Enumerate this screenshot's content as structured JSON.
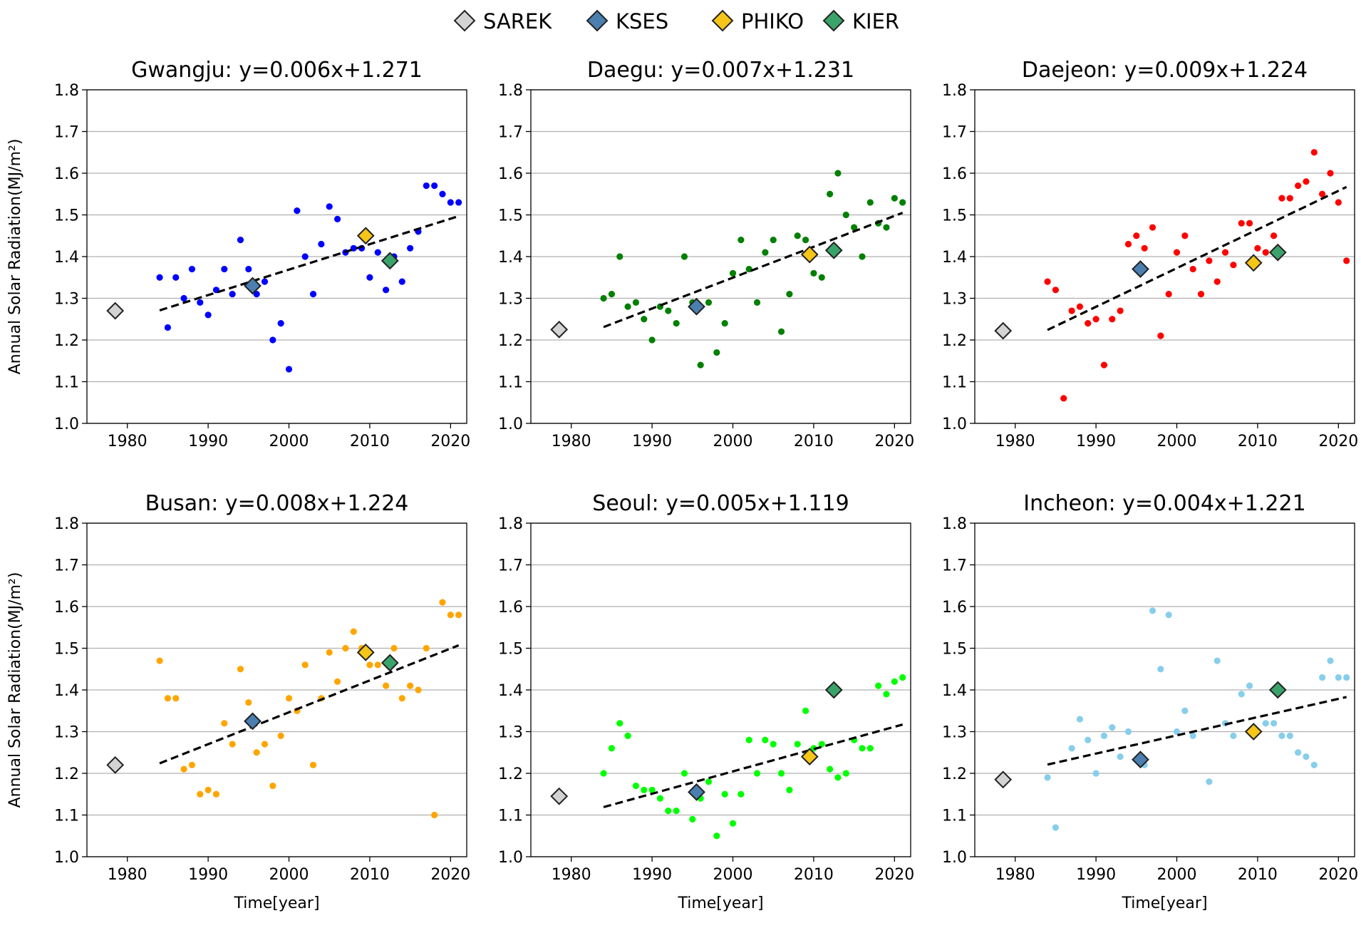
{
  "legend": [
    {
      "label": "SAREK",
      "color": "#d3d3d3"
    },
    {
      "label": "KSES",
      "color": "#4a7fb0"
    },
    {
      "label": "PHIKO",
      "color": "#f5c518"
    },
    {
      "label": "KIER",
      "color": "#3aa36a"
    }
  ],
  "chart_data": [
    {
      "type": "scatter",
      "title": "Gwangju: y=0.006x+1.271",
      "xlabel": "",
      "ylabel": "Annual Solar Radiation(MJ/m²)",
      "xlim": [
        1975,
        2022
      ],
      "ylim": [
        1.0,
        1.8
      ],
      "xticks": [
        1980,
        1990,
        2000,
        2010,
        2020
      ],
      "yticks": [
        1.0,
        1.1,
        1.2,
        1.3,
        1.4,
        1.5,
        1.6,
        1.7,
        1.8
      ],
      "grid": "y",
      "color": "#0000ff",
      "trend": {
        "x": [
          1984,
          2021
        ],
        "y": [
          1.271,
          1.497
        ]
      },
      "points": [
        [
          1984,
          1.35
        ],
        [
          1985,
          1.23
        ],
        [
          1986,
          1.35
        ],
        [
          1987,
          1.3
        ],
        [
          1988,
          1.37
        ],
        [
          1989,
          1.29
        ],
        [
          1990,
          1.26
        ],
        [
          1991,
          1.32
        ],
        [
          1992,
          1.37
        ],
        [
          1993,
          1.31
        ],
        [
          1994,
          1.44
        ],
        [
          1995,
          1.37
        ],
        [
          1996,
          1.31
        ],
        [
          1997,
          1.34
        ],
        [
          1998,
          1.2
        ],
        [
          1999,
          1.24
        ],
        [
          2000,
          1.13
        ],
        [
          2001,
          1.51
        ],
        [
          2002,
          1.4
        ],
        [
          2003,
          1.31
        ],
        [
          2004,
          1.43
        ],
        [
          2005,
          1.52
        ],
        [
          2006,
          1.49
        ],
        [
          2007,
          1.41
        ],
        [
          2008,
          1.42
        ],
        [
          2009,
          1.42
        ],
        [
          2010,
          1.35
        ],
        [
          2011,
          1.41
        ],
        [
          2012,
          1.32
        ],
        [
          2013,
          1.4
        ],
        [
          2014,
          1.34
        ],
        [
          2015,
          1.42
        ],
        [
          2016,
          1.46
        ],
        [
          2017,
          1.57
        ],
        [
          2018,
          1.57
        ],
        [
          2019,
          1.55
        ],
        [
          2020,
          1.53
        ],
        [
          2021,
          1.53
        ]
      ],
      "markers": [
        {
          "label": "SAREK",
          "x": 1978.5,
          "y": 1.27
        },
        {
          "label": "KSES",
          "x": 1995.5,
          "y": 1.33
        },
        {
          "label": "PHIKO",
          "x": 2009.5,
          "y": 1.45
        },
        {
          "label": "KIER",
          "x": 2012.5,
          "y": 1.39
        }
      ]
    },
    {
      "type": "scatter",
      "title": "Daegu: y=0.007x+1.231",
      "xlabel": "",
      "ylabel": "",
      "xlim": [
        1975,
        2022
      ],
      "ylim": [
        1.0,
        1.8
      ],
      "xticks": [
        1980,
        1990,
        2000,
        2010,
        2020
      ],
      "yticks": [
        1.0,
        1.1,
        1.2,
        1.3,
        1.4,
        1.5,
        1.6,
        1.7,
        1.8
      ],
      "grid": "y",
      "color": "#008000",
      "trend": {
        "x": [
          1984,
          2021
        ],
        "y": [
          1.231,
          1.505
        ]
      },
      "points": [
        [
          1984,
          1.3
        ],
        [
          1985,
          1.31
        ],
        [
          1986,
          1.4
        ],
        [
          1987,
          1.28
        ],
        [
          1988,
          1.29
        ],
        [
          1989,
          1.25
        ],
        [
          1990,
          1.2
        ],
        [
          1991,
          1.28
        ],
        [
          1992,
          1.27
        ],
        [
          1993,
          1.24
        ],
        [
          1994,
          1.4
        ],
        [
          1995,
          1.29
        ],
        [
          1996,
          1.14
        ],
        [
          1997,
          1.29
        ],
        [
          1998,
          1.17
        ],
        [
          1999,
          1.24
        ],
        [
          2000,
          1.36
        ],
        [
          2001,
          1.44
        ],
        [
          2002,
          1.37
        ],
        [
          2003,
          1.29
        ],
        [
          2004,
          1.41
        ],
        [
          2005,
          1.44
        ],
        [
          2006,
          1.22
        ],
        [
          2007,
          1.31
        ],
        [
          2008,
          1.45
        ],
        [
          2009,
          1.44
        ],
        [
          2010,
          1.36
        ],
        [
          2011,
          1.35
        ],
        [
          2012,
          1.55
        ],
        [
          2013,
          1.6
        ],
        [
          2014,
          1.5
        ],
        [
          2015,
          1.47
        ],
        [
          2016,
          1.4
        ],
        [
          2017,
          1.53
        ],
        [
          2018,
          1.48
        ],
        [
          2019,
          1.47
        ],
        [
          2020,
          1.54
        ],
        [
          2021,
          1.53
        ]
      ],
      "markers": [
        {
          "label": "SAREK",
          "x": 1978.5,
          "y": 1.225
        },
        {
          "label": "KSES",
          "x": 1995.5,
          "y": 1.28
        },
        {
          "label": "PHIKO",
          "x": 2009.5,
          "y": 1.405
        },
        {
          "label": "KIER",
          "x": 2012.5,
          "y": 1.415
        }
      ]
    },
    {
      "type": "scatter",
      "title": "Daejeon: y=0.009x+1.224",
      "xlabel": "",
      "ylabel": "",
      "xlim": [
        1975,
        2022
      ],
      "ylim": [
        1.0,
        1.8
      ],
      "xticks": [
        1980,
        1990,
        2000,
        2010,
        2020
      ],
      "yticks": [
        1.0,
        1.1,
        1.2,
        1.3,
        1.4,
        1.5,
        1.6,
        1.7,
        1.8
      ],
      "grid": "y",
      "color": "#ff0000",
      "trend": {
        "x": [
          1984,
          2021
        ],
        "y": [
          1.224,
          1.567
        ]
      },
      "points": [
        [
          1984,
          1.34
        ],
        [
          1985,
          1.32
        ],
        [
          1986,
          1.06
        ],
        [
          1987,
          1.27
        ],
        [
          1988,
          1.28
        ],
        [
          1989,
          1.24
        ],
        [
          1990,
          1.25
        ],
        [
          1991,
          1.14
        ],
        [
          1992,
          1.25
        ],
        [
          1993,
          1.27
        ],
        [
          1994,
          1.43
        ],
        [
          1995,
          1.45
        ],
        [
          1996,
          1.42
        ],
        [
          1997,
          1.47
        ],
        [
          1998,
          1.21
        ],
        [
          1999,
          1.31
        ],
        [
          2000,
          1.41
        ],
        [
          2001,
          1.45
        ],
        [
          2002,
          1.37
        ],
        [
          2003,
          1.31
        ],
        [
          2004,
          1.39
        ],
        [
          2005,
          1.34
        ],
        [
          2006,
          1.41
        ],
        [
          2007,
          1.38
        ],
        [
          2008,
          1.48
        ],
        [
          2009,
          1.48
        ],
        [
          2010,
          1.42
        ],
        [
          2011,
          1.41
        ],
        [
          2012,
          1.45
        ],
        [
          2013,
          1.54
        ],
        [
          2014,
          1.54
        ],
        [
          2015,
          1.57
        ],
        [
          2016,
          1.58
        ],
        [
          2017,
          1.65
        ],
        [
          2018,
          1.55
        ],
        [
          2019,
          1.6
        ],
        [
          2020,
          1.53
        ],
        [
          2021,
          1.39
        ]
      ],
      "markers": [
        {
          "label": "SAREK",
          "x": 1978.5,
          "y": 1.222
        },
        {
          "label": "KSES",
          "x": 1995.5,
          "y": 1.37
        },
        {
          "label": "PHIKO",
          "x": 2009.5,
          "y": 1.385
        },
        {
          "label": "KIER",
          "x": 2012.5,
          "y": 1.41
        }
      ]
    },
    {
      "type": "scatter",
      "title": "Busan: y=0.008x+1.224",
      "xlabel": "Time[year]",
      "ylabel": "Annual Solar Radiation(MJ/m²)",
      "xlim": [
        1975,
        2022
      ],
      "ylim": [
        1.0,
        1.8
      ],
      "xticks": [
        1980,
        1990,
        2000,
        2010,
        2020
      ],
      "yticks": [
        1.0,
        1.1,
        1.2,
        1.3,
        1.4,
        1.5,
        1.6,
        1.7,
        1.8
      ],
      "grid": "y",
      "color": "#ffa500",
      "trend": {
        "x": [
          1984,
          2021
        ],
        "y": [
          1.224,
          1.507
        ]
      },
      "points": [
        [
          1984,
          1.47
        ],
        [
          1985,
          1.38
        ],
        [
          1986,
          1.38
        ],
        [
          1987,
          1.21
        ],
        [
          1988,
          1.22
        ],
        [
          1989,
          1.15
        ],
        [
          1990,
          1.16
        ],
        [
          1991,
          1.15
        ],
        [
          1992,
          1.32
        ],
        [
          1993,
          1.27
        ],
        [
          1994,
          1.45
        ],
        [
          1995,
          1.37
        ],
        [
          1996,
          1.25
        ],
        [
          1997,
          1.27
        ],
        [
          1998,
          1.17
        ],
        [
          1999,
          1.29
        ],
        [
          2000,
          1.38
        ],
        [
          2001,
          1.35
        ],
        [
          2002,
          1.46
        ],
        [
          2003,
          1.22
        ],
        [
          2004,
          1.38
        ],
        [
          2005,
          1.49
        ],
        [
          2006,
          1.42
        ],
        [
          2007,
          1.5
        ],
        [
          2008,
          1.54
        ],
        [
          2009,
          1.5
        ],
        [
          2010,
          1.46
        ],
        [
          2011,
          1.46
        ],
        [
          2012,
          1.41
        ],
        [
          2013,
          1.5
        ],
        [
          2014,
          1.38
        ],
        [
          2015,
          1.41
        ],
        [
          2016,
          1.4
        ],
        [
          2017,
          1.5
        ],
        [
          2018,
          1.1
        ],
        [
          2019,
          1.61
        ],
        [
          2020,
          1.58
        ],
        [
          2021,
          1.58
        ]
      ],
      "markers": [
        {
          "label": "SAREK",
          "x": 1978.5,
          "y": 1.22
        },
        {
          "label": "KSES",
          "x": 1995.5,
          "y": 1.325
        },
        {
          "label": "PHIKO",
          "x": 2009.5,
          "y": 1.49
        },
        {
          "label": "KIER",
          "x": 2012.5,
          "y": 1.465
        }
      ]
    },
    {
      "type": "scatter",
      "title": "Seoul: y=0.005x+1.119",
      "xlabel": "Time[year]",
      "ylabel": "",
      "xlim": [
        1975,
        2022
      ],
      "ylim": [
        1.0,
        1.8
      ],
      "xticks": [
        1980,
        1990,
        2000,
        2010,
        2020
      ],
      "yticks": [
        1.0,
        1.1,
        1.2,
        1.3,
        1.4,
        1.5,
        1.6,
        1.7,
        1.8
      ],
      "grid": "y",
      "color": "#00ff00",
      "trend": {
        "x": [
          1984,
          2021
        ],
        "y": [
          1.119,
          1.317
        ]
      },
      "points": [
        [
          1984,
          1.2
        ],
        [
          1985,
          1.26
        ],
        [
          1986,
          1.32
        ],
        [
          1987,
          1.29
        ],
        [
          1988,
          1.17
        ],
        [
          1989,
          1.16
        ],
        [
          1990,
          1.16
        ],
        [
          1991,
          1.14
        ],
        [
          1992,
          1.11
        ],
        [
          1993,
          1.11
        ],
        [
          1994,
          1.2
        ],
        [
          1995,
          1.09
        ],
        [
          1996,
          1.14
        ],
        [
          1997,
          1.18
        ],
        [
          1998,
          1.05
        ],
        [
          1999,
          1.15
        ],
        [
          2000,
          1.08
        ],
        [
          2001,
          1.15
        ],
        [
          2002,
          1.28
        ],
        [
          2003,
          1.2
        ],
        [
          2004,
          1.28
        ],
        [
          2005,
          1.27
        ],
        [
          2006,
          1.2
        ],
        [
          2007,
          1.16
        ],
        [
          2008,
          1.27
        ],
        [
          2009,
          1.35
        ],
        [
          2010,
          1.26
        ],
        [
          2011,
          1.27
        ],
        [
          2012,
          1.21
        ],
        [
          2013,
          1.19
        ],
        [
          2014,
          1.2
        ],
        [
          2015,
          1.28
        ],
        [
          2016,
          1.26
        ],
        [
          2017,
          1.26
        ],
        [
          2018,
          1.41
        ],
        [
          2019,
          1.39
        ],
        [
          2020,
          1.42
        ],
        [
          2021,
          1.43
        ]
      ],
      "markers": [
        {
          "label": "SAREK",
          "x": 1978.5,
          "y": 1.145
        },
        {
          "label": "KSES",
          "x": 1995.5,
          "y": 1.155
        },
        {
          "label": "PHIKO",
          "x": 2009.5,
          "y": 1.24
        },
        {
          "label": "KIER",
          "x": 2012.5,
          "y": 1.4
        }
      ]
    },
    {
      "type": "scatter",
      "title": "Incheon: y=0.004x+1.221",
      "xlabel": "Time[year]",
      "ylabel": "",
      "xlim": [
        1975,
        2022
      ],
      "ylim": [
        1.0,
        1.8
      ],
      "xticks": [
        1980,
        1990,
        2000,
        2010,
        2020
      ],
      "yticks": [
        1.0,
        1.1,
        1.2,
        1.3,
        1.4,
        1.5,
        1.6,
        1.7,
        1.8
      ],
      "grid": "y",
      "color": "#87ceeb",
      "trend": {
        "x": [
          1984,
          2021
        ],
        "y": [
          1.221,
          1.383
        ]
      },
      "points": [
        [
          1984,
          1.19
        ],
        [
          1985,
          1.07
        ],
        [
          1987,
          1.26
        ],
        [
          1988,
          1.33
        ],
        [
          1989,
          1.28
        ],
        [
          1990,
          1.2
        ],
        [
          1991,
          1.29
        ],
        [
          1992,
          1.31
        ],
        [
          1993,
          1.24
        ],
        [
          1994,
          1.3
        ],
        [
          1996,
          1.22
        ],
        [
          1997,
          1.59
        ],
        [
          1998,
          1.45
        ],
        [
          1999,
          1.58
        ],
        [
          2000,
          1.3
        ],
        [
          2001,
          1.35
        ],
        [
          2002,
          1.29
        ],
        [
          2004,
          1.18
        ],
        [
          2005,
          1.47
        ],
        [
          2006,
          1.32
        ],
        [
          2007,
          1.29
        ],
        [
          2008,
          1.39
        ],
        [
          2009,
          1.41
        ],
        [
          2011,
          1.32
        ],
        [
          2012,
          1.32
        ],
        [
          2013,
          1.29
        ],
        [
          2014,
          1.29
        ],
        [
          2015,
          1.25
        ],
        [
          2016,
          1.24
        ],
        [
          2017,
          1.22
        ],
        [
          2018,
          1.43
        ],
        [
          2019,
          1.47
        ],
        [
          2020,
          1.43
        ],
        [
          2021,
          1.43
        ]
      ],
      "markers": [
        {
          "label": "SAREK",
          "x": 1978.5,
          "y": 1.185
        },
        {
          "label": "KSES",
          "x": 1995.5,
          "y": 1.233
        },
        {
          "label": "PHIKO",
          "x": 2009.5,
          "y": 1.3
        },
        {
          "label": "KIER",
          "x": 2012.5,
          "y": 1.4
        }
      ]
    }
  ]
}
